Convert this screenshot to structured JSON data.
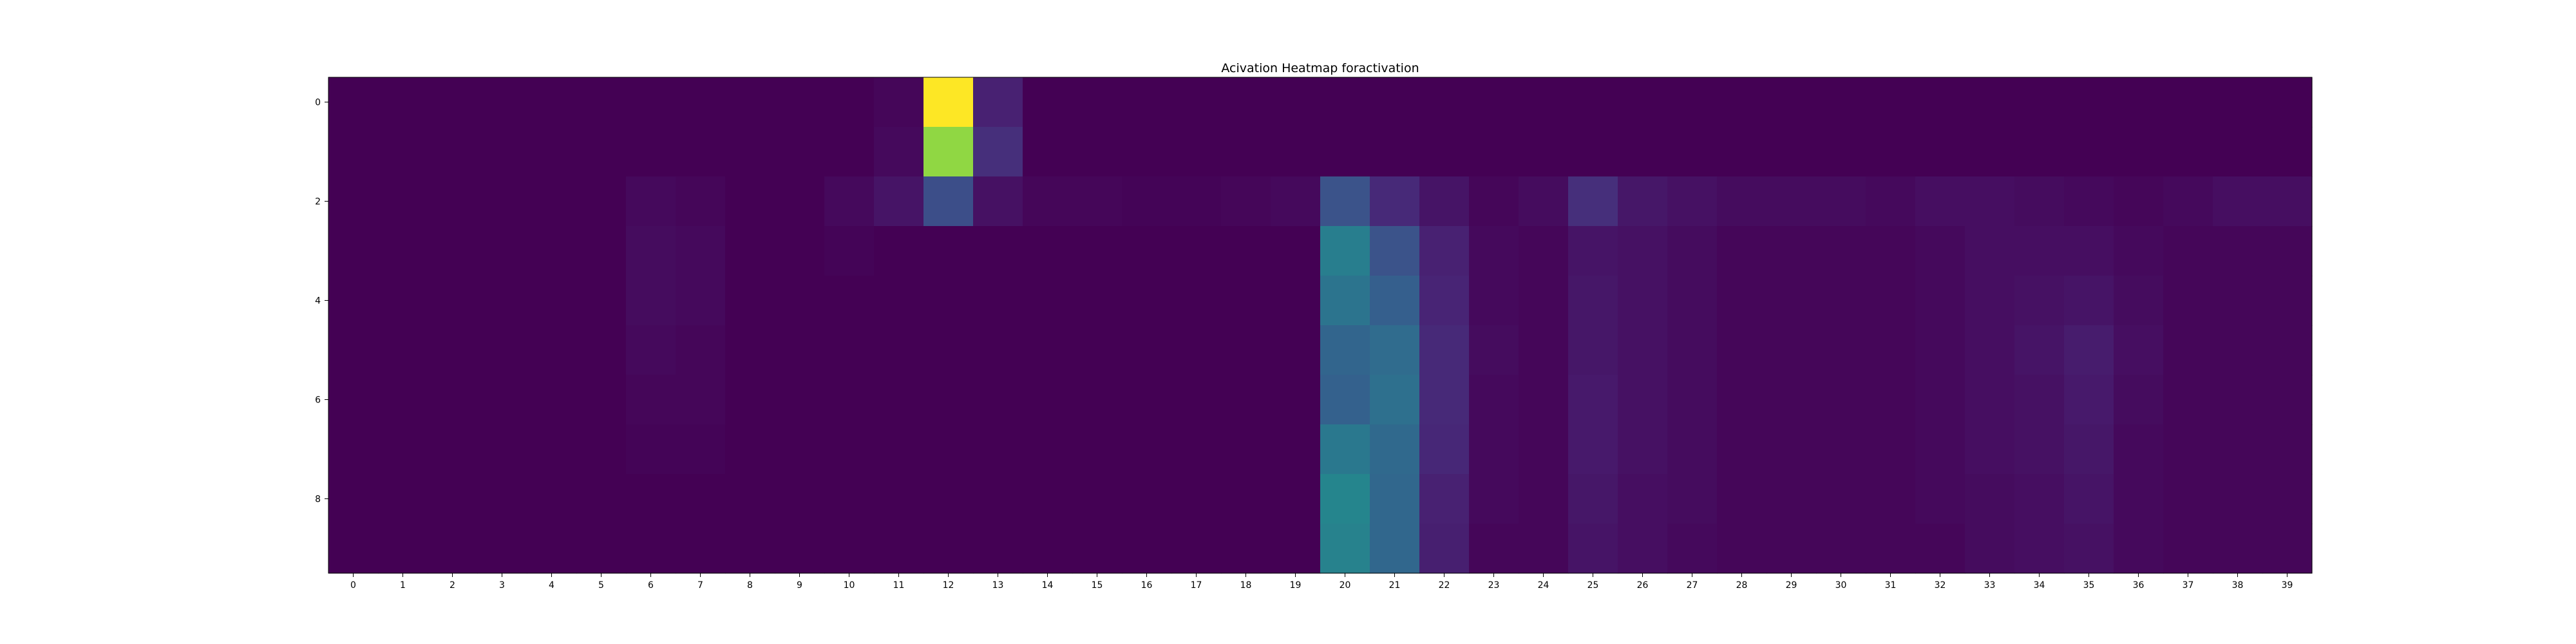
{
  "chart_data": {
    "type": "heatmap",
    "title": "Acivation Heatmap foractivation",
    "xlabel": "",
    "ylabel": "",
    "x_categories": [
      "0",
      "1",
      "2",
      "3",
      "4",
      "5",
      "6",
      "7",
      "8",
      "9",
      "10",
      "11",
      "12",
      "13",
      "14",
      "15",
      "16",
      "17",
      "18",
      "19",
      "20",
      "21",
      "22",
      "23",
      "24",
      "25",
      "26",
      "27",
      "28",
      "29",
      "30",
      "31",
      "32",
      "33",
      "34",
      "35",
      "36",
      "37",
      "38",
      "39"
    ],
    "y_tick_labels": [
      "0",
      "2",
      "4",
      "6",
      "8"
    ],
    "rows": 10,
    "value_range": [
      0,
      1
    ],
    "colormap": "viridis",
    "grid": false,
    "values": [
      [
        0,
        0,
        0,
        0,
        0,
        0,
        0,
        0,
        0,
        0,
        0,
        0.02,
        1.0,
        0.12,
        0,
        0,
        0,
        0,
        0,
        0,
        0,
        0,
        0,
        0,
        0,
        0,
        0,
        0,
        0,
        0,
        0,
        0,
        0,
        0,
        0,
        0,
        0,
        0,
        0,
        0
      ],
      [
        0,
        0,
        0,
        0,
        0,
        0,
        0,
        0,
        0,
        0,
        0,
        0.03,
        0.88,
        0.17,
        0,
        0,
        0,
        0,
        0,
        0,
        0,
        0,
        0,
        0,
        0,
        0,
        0,
        0,
        0,
        0,
        0,
        0,
        0,
        0,
        0,
        0,
        0,
        0,
        0,
        0
      ],
      [
        0,
        0,
        0,
        0,
        0,
        0,
        0.03,
        0.02,
        0,
        0,
        0.03,
        0.07,
        0.3,
        0.06,
        0.02,
        0.02,
        0.01,
        0.01,
        0.02,
        0.03,
        0.32,
        0.15,
        0.07,
        0.02,
        0.04,
        0.17,
        0.08,
        0.06,
        0.04,
        0.04,
        0.04,
        0.03,
        0.05,
        0.05,
        0.04,
        0.03,
        0.02,
        0.03,
        0.05,
        0.05
      ],
      [
        0,
        0,
        0,
        0,
        0,
        0,
        0.04,
        0.03,
        0,
        0,
        0.01,
        0,
        0,
        0,
        0,
        0,
        0,
        0,
        0,
        0,
        0.53,
        0.32,
        0.12,
        0.03,
        0.02,
        0.07,
        0.06,
        0.04,
        0.02,
        0.02,
        0.02,
        0.02,
        0.03,
        0.05,
        0.05,
        0.05,
        0.03,
        0.02,
        0.02,
        0.02
      ],
      [
        0,
        0,
        0,
        0,
        0,
        0,
        0.04,
        0.03,
        0,
        0,
        0,
        0,
        0,
        0,
        0,
        0,
        0,
        0,
        0,
        0,
        0.48,
        0.38,
        0.13,
        0.03,
        0.02,
        0.08,
        0.06,
        0.04,
        0.02,
        0.02,
        0.02,
        0.02,
        0.03,
        0.05,
        0.06,
        0.07,
        0.04,
        0.02,
        0.02,
        0.02
      ],
      [
        0,
        0,
        0,
        0,
        0,
        0,
        0.03,
        0.02,
        0,
        0,
        0,
        0,
        0,
        0,
        0,
        0,
        0,
        0,
        0,
        0,
        0.41,
        0.44,
        0.15,
        0.04,
        0.02,
        0.08,
        0.06,
        0.04,
        0.02,
        0.02,
        0.02,
        0.02,
        0.03,
        0.05,
        0.07,
        0.1,
        0.05,
        0.02,
        0.02,
        0.02
      ],
      [
        0,
        0,
        0,
        0,
        0,
        0,
        0.02,
        0.02,
        0,
        0,
        0,
        0,
        0,
        0,
        0,
        0,
        0,
        0,
        0,
        0,
        0.39,
        0.46,
        0.15,
        0.03,
        0.02,
        0.09,
        0.06,
        0.04,
        0.02,
        0.02,
        0.02,
        0.02,
        0.03,
        0.05,
        0.06,
        0.09,
        0.04,
        0.02,
        0.02,
        0.02
      ],
      [
        0,
        0,
        0,
        0,
        0,
        0,
        0.01,
        0.01,
        0,
        0,
        0,
        0,
        0,
        0,
        0,
        0,
        0,
        0,
        0,
        0,
        0.5,
        0.43,
        0.14,
        0.03,
        0.02,
        0.09,
        0.06,
        0.04,
        0.02,
        0.02,
        0.02,
        0.02,
        0.03,
        0.05,
        0.06,
        0.08,
        0.03,
        0.02,
        0.02,
        0.02
      ],
      [
        0,
        0,
        0,
        0,
        0,
        0,
        0,
        0,
        0,
        0,
        0,
        0,
        0,
        0,
        0,
        0,
        0,
        0,
        0,
        0,
        0.57,
        0.42,
        0.12,
        0.03,
        0.02,
        0.08,
        0.05,
        0.04,
        0.02,
        0.02,
        0.02,
        0.02,
        0.03,
        0.04,
        0.05,
        0.07,
        0.03,
        0.02,
        0.02,
        0.02
      ],
      [
        0,
        0,
        0,
        0,
        0,
        0,
        0,
        0,
        0,
        0,
        0,
        0,
        0,
        0,
        0,
        0,
        0,
        0,
        0,
        0,
        0.55,
        0.42,
        0.11,
        0.02,
        0.02,
        0.07,
        0.05,
        0.03,
        0.02,
        0.02,
        0.02,
        0.02,
        0.02,
        0.04,
        0.05,
        0.06,
        0.03,
        0.02,
        0.02,
        0.02
      ]
    ]
  }
}
